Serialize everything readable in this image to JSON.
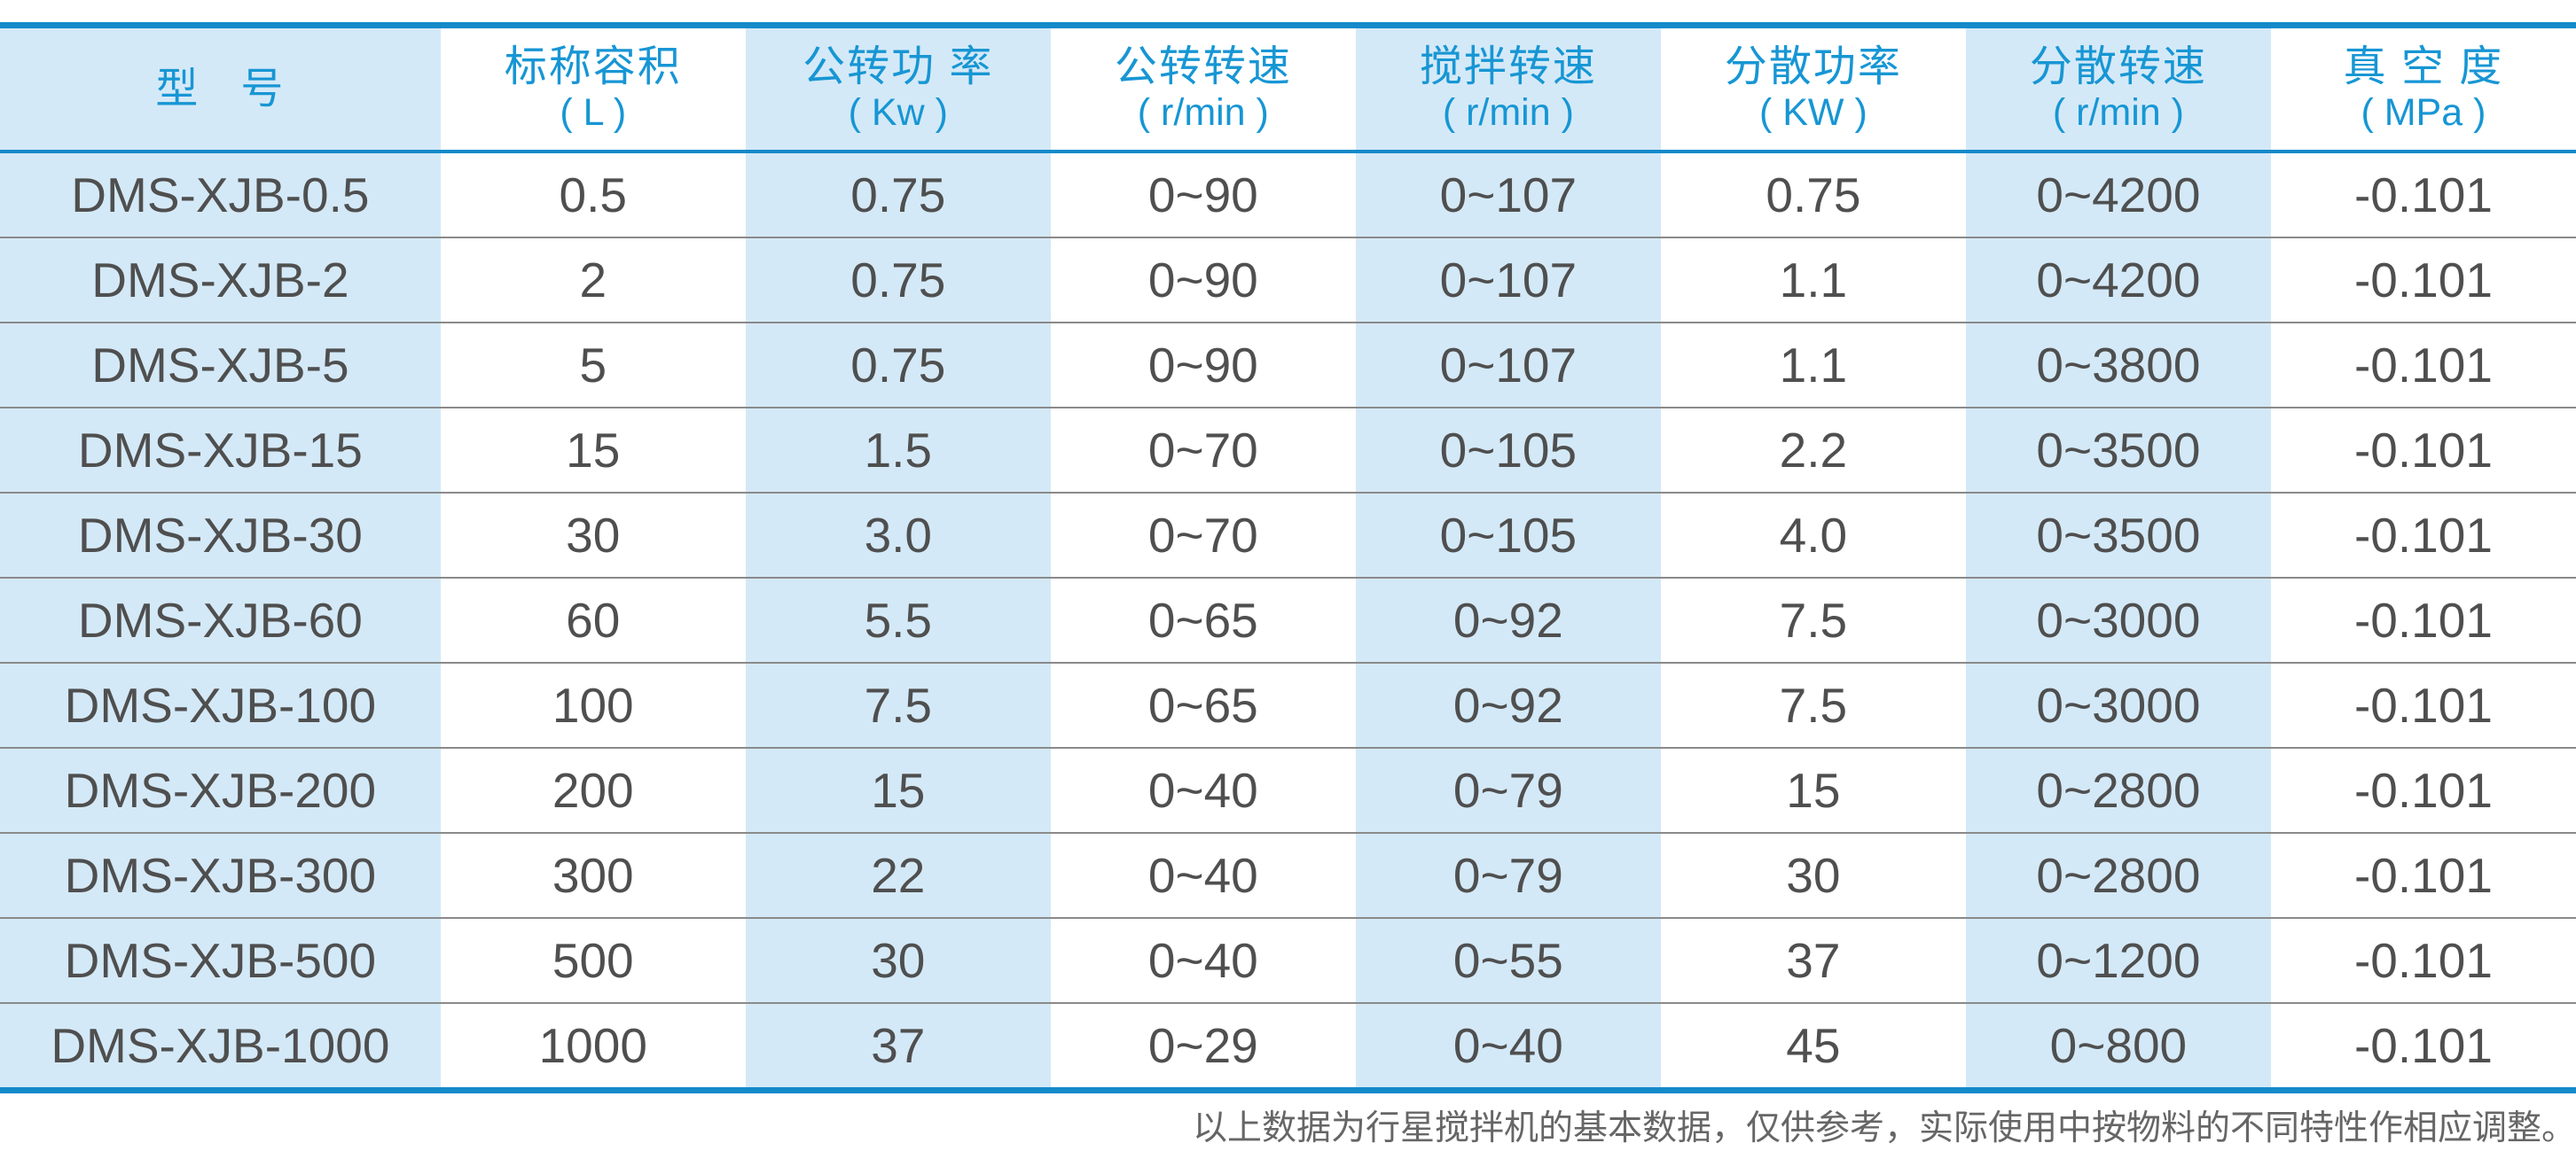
{
  "table": {
    "columns": [
      {
        "title": "型   号",
        "unit": ""
      },
      {
        "title": "标称容积",
        "unit": "( L )"
      },
      {
        "title": "公转功 率",
        "unit": "( Kw )"
      },
      {
        "title": "公转转速",
        "unit": "( r/min )"
      },
      {
        "title": "搅拌转速",
        "unit": "( r/min )"
      },
      {
        "title": "分散功率",
        "unit": "( KW )"
      },
      {
        "title": "分散转速",
        "unit": "( r/min )"
      },
      {
        "title": "真 空 度",
        "unit": "( MPa )"
      }
    ],
    "rows": [
      [
        "DMS-XJB-0.5",
        "0.5",
        "0.75",
        "0~90",
        "0~107",
        "0.75",
        "0~4200",
        "-0.101"
      ],
      [
        "DMS-XJB-2",
        "2",
        "0.75",
        "0~90",
        "0~107",
        "1.1",
        "0~4200",
        "-0.101"
      ],
      [
        "DMS-XJB-5",
        "5",
        "0.75",
        "0~90",
        "0~107",
        "1.1",
        "0~3800",
        "-0.101"
      ],
      [
        "DMS-XJB-15",
        "15",
        "1.5",
        "0~70",
        "0~105",
        "2.2",
        "0~3500",
        "-0.101"
      ],
      [
        "DMS-XJB-30",
        "30",
        "3.0",
        "0~70",
        "0~105",
        "4.0",
        "0~3500",
        "-0.101"
      ],
      [
        "DMS-XJB-60",
        "60",
        "5.5",
        "0~65",
        "0~92",
        "7.5",
        "0~3000",
        "-0.101"
      ],
      [
        "DMS-XJB-100",
        "100",
        "7.5",
        "0~65",
        "0~92",
        "7.5",
        "0~3000",
        "-0.101"
      ],
      [
        "DMS-XJB-200",
        "200",
        "15",
        "0~40",
        "0~79",
        "15",
        "0~2800",
        "-0.101"
      ],
      [
        "DMS-XJB-300",
        "300",
        "22",
        "0~40",
        "0~79",
        "30",
        "0~2800",
        "-0.101"
      ],
      [
        "DMS-XJB-500",
        "500",
        "30",
        "0~40",
        "0~55",
        "37",
        "0~1200",
        "-0.101"
      ],
      [
        "DMS-XJB-1000",
        "1000",
        "37",
        "0~29",
        "0~40",
        "45",
        "0~800",
        "-0.101"
      ]
    ]
  },
  "footer": {
    "note": "以上数据为行星搅拌机的基本数据，仅供参考，实际使用中按物料的不同特性作相应调整。"
  },
  "colors": {
    "header_text": "#1796d4",
    "border_blue": "#148aca",
    "column_stripe": "#d4e9f7",
    "body_text": "#4f4f4f",
    "footer_text": "#666666"
  }
}
